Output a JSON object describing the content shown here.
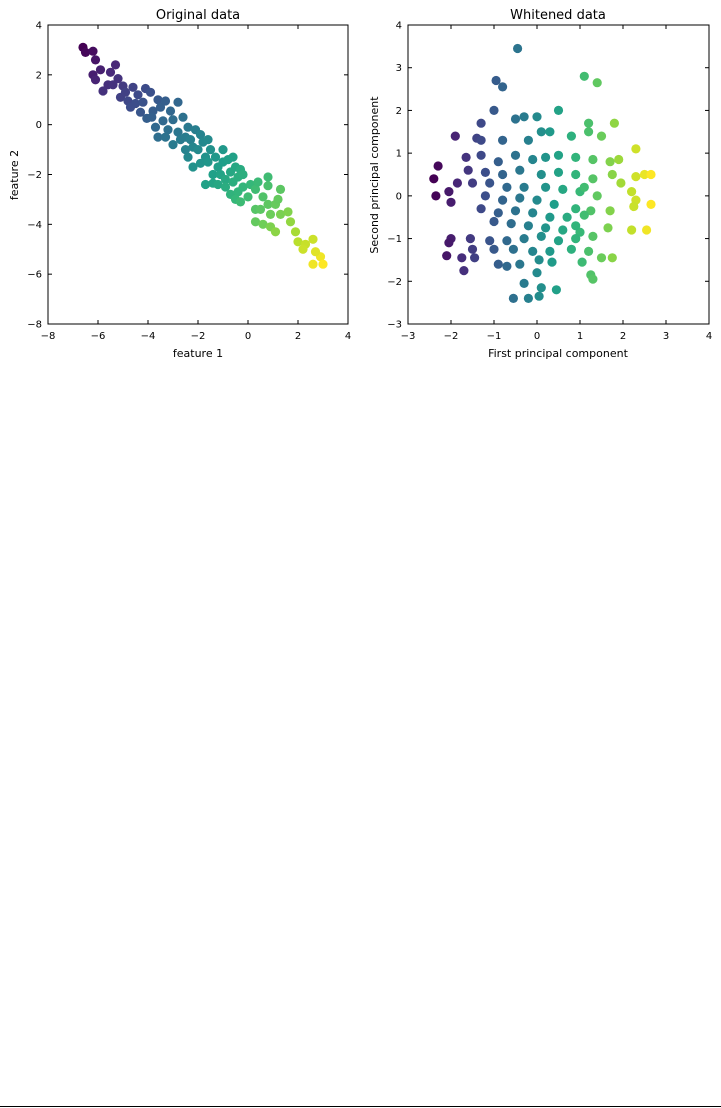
{
  "chart_data": [
    {
      "type": "scatter",
      "title": "Original data",
      "xlabel": "feature 1",
      "ylabel": "feature 2",
      "xlim": [
        -8,
        4
      ],
      "ylim": [
        -8,
        4
      ],
      "xticks": [
        -8,
        -6,
        -4,
        -2,
        0,
        2,
        4
      ],
      "yticks": [
        -8,
        -6,
        -4,
        -2,
        0,
        2,
        4
      ],
      "grid": false,
      "legend": null,
      "colormap": "viridis",
      "color_by": "first principal component",
      "points": [
        [
          -6.6,
          3.1
        ],
        [
          -6.5,
          2.9
        ],
        [
          -6.2,
          2.95
        ],
        [
          -6.1,
          2.6
        ],
        [
          -6.2,
          2.0
        ],
        [
          -6.1,
          1.8
        ],
        [
          -5.9,
          2.2
        ],
        [
          -5.5,
          2.1
        ],
        [
          -5.3,
          2.4
        ],
        [
          -5.6,
          1.6
        ],
        [
          -5.8,
          1.35
        ],
        [
          -5.2,
          1.85
        ],
        [
          -5.0,
          1.55
        ],
        [
          -5.1,
          1.1
        ],
        [
          -4.9,
          1.3
        ],
        [
          -4.6,
          1.5
        ],
        [
          -4.8,
          0.95
        ],
        [
          -4.5,
          0.85
        ],
        [
          -4.4,
          1.2
        ],
        [
          -4.1,
          1.45
        ],
        [
          -4.2,
          0.9
        ],
        [
          -3.9,
          1.3
        ],
        [
          -3.6,
          1.0
        ],
        [
          -3.8,
          0.55
        ],
        [
          -4.05,
          0.25
        ],
        [
          -3.85,
          0.3
        ],
        [
          -3.5,
          0.7
        ],
        [
          -3.3,
          0.95
        ],
        [
          -3.1,
          0.55
        ],
        [
          -3.4,
          0.15
        ],
        [
          -3.7,
          -0.1
        ],
        [
          -3.6,
          -0.5
        ],
        [
          -3.2,
          -0.2
        ],
        [
          -3.0,
          0.2
        ],
        [
          -2.8,
          0.9
        ],
        [
          -2.8,
          -0.3
        ],
        [
          -2.6,
          0.3
        ],
        [
          -2.4,
          -0.1
        ],
        [
          -3.0,
          -0.8
        ],
        [
          -2.7,
          -0.6
        ],
        [
          -2.5,
          -0.5
        ],
        [
          -2.3,
          -0.6
        ],
        [
          -2.1,
          -0.2
        ],
        [
          -1.9,
          -0.4
        ],
        [
          -2.2,
          -0.9
        ],
        [
          -2.0,
          -1.0
        ],
        [
          -1.8,
          -0.7
        ],
        [
          -1.6,
          -0.6
        ],
        [
          -1.5,
          -1.0
        ],
        [
          -1.7,
          -1.3
        ],
        [
          -2.4,
          -1.3
        ],
        [
          -2.2,
          -1.7
        ],
        [
          -1.9,
          -1.55
        ],
        [
          -1.6,
          -1.5
        ],
        [
          -1.3,
          -1.3
        ],
        [
          -1.2,
          -1.7
        ],
        [
          -1.0,
          -1.5
        ],
        [
          -0.8,
          -1.4
        ],
        [
          -0.6,
          -1.3
        ],
        [
          -1.4,
          -2.0
        ],
        [
          -1.1,
          -2.0
        ],
        [
          -0.9,
          -2.2
        ],
        [
          -0.7,
          -1.9
        ],
        [
          -0.5,
          -1.7
        ],
        [
          -0.3,
          -1.8
        ],
        [
          -1.7,
          -2.4
        ],
        [
          -1.4,
          -2.35
        ],
        [
          -1.2,
          -2.4
        ],
        [
          -0.9,
          -2.5
        ],
        [
          -0.6,
          -2.3
        ],
        [
          -0.4,
          -2.1
        ],
        [
          -0.2,
          -2.0
        ],
        [
          -0.7,
          -2.8
        ],
        [
          -0.4,
          -2.7
        ],
        [
          -0.2,
          -2.5
        ],
        [
          0.1,
          -2.4
        ],
        [
          -0.5,
          -3.0
        ],
        [
          -0.3,
          -3.1
        ],
        [
          0.0,
          -2.9
        ],
        [
          0.3,
          -2.6
        ],
        [
          0.4,
          -2.3
        ],
        [
          0.8,
          -2.45
        ],
        [
          0.6,
          -2.9
        ],
        [
          1.3,
          -2.6
        ],
        [
          0.8,
          -2.1
        ],
        [
          0.3,
          -3.4
        ],
        [
          0.5,
          -3.4
        ],
        [
          0.8,
          -3.2
        ],
        [
          1.1,
          -3.2
        ],
        [
          0.3,
          -3.9
        ],
        [
          1.2,
          -3.0
        ],
        [
          0.9,
          -3.6
        ],
        [
          1.3,
          -3.6
        ],
        [
          1.7,
          -3.9
        ],
        [
          0.6,
          -4.0
        ],
        [
          0.9,
          -4.1
        ],
        [
          1.6,
          -3.5
        ],
        [
          1.1,
          -4.3
        ],
        [
          1.9,
          -4.3
        ],
        [
          2.0,
          -4.7
        ],
        [
          2.3,
          -4.8
        ],
        [
          2.2,
          -5.0
        ],
        [
          2.6,
          -4.6
        ],
        [
          2.9,
          -5.3
        ],
        [
          2.7,
          -5.1
        ],
        [
          3.0,
          -5.6
        ],
        [
          2.6,
          -5.6
        ],
        [
          -5.4,
          1.6
        ],
        [
          -4.7,
          0.7
        ],
        [
          -4.3,
          0.5
        ],
        [
          -3.3,
          -0.5
        ],
        [
          -2.5,
          -1.0
        ],
        [
          -1.0,
          -1.0
        ]
      ]
    },
    {
      "type": "scatter",
      "title": "Whitened data",
      "xlabel": "First principal component",
      "ylabel": "Second principal component",
      "xlim": [
        -3,
        4
      ],
      "ylim": [
        -3,
        4
      ],
      "xticks": [
        -3,
        -2,
        -1,
        0,
        1,
        2,
        3,
        4
      ],
      "yticks": [
        -3,
        -2,
        -1,
        0,
        1,
        2,
        3,
        4
      ],
      "grid": false,
      "legend": null,
      "colormap": "viridis",
      "color_by": "first principal component",
      "points": [
        [
          -0.45,
          3.45
        ],
        [
          -0.8,
          2.55
        ],
        [
          -0.95,
          2.7
        ],
        [
          1.1,
          2.8
        ],
        [
          1.4,
          2.65
        ],
        [
          -1.0,
          2.0
        ],
        [
          -1.3,
          1.7
        ],
        [
          0.5,
          2.0
        ],
        [
          -0.5,
          1.8
        ],
        [
          -0.3,
          1.85
        ],
        [
          0.0,
          1.85
        ],
        [
          1.2,
          1.7
        ],
        [
          1.8,
          1.7
        ],
        [
          -1.9,
          1.4
        ],
        [
          -1.4,
          1.35
        ],
        [
          -0.8,
          1.3
        ],
        [
          -0.2,
          1.3
        ],
        [
          0.1,
          1.5
        ],
        [
          0.3,
          1.5
        ],
        [
          0.8,
          1.4
        ],
        [
          1.2,
          1.5
        ],
        [
          1.5,
          1.4
        ],
        [
          -1.65,
          0.9
        ],
        [
          -1.3,
          0.95
        ],
        [
          -0.9,
          0.8
        ],
        [
          -0.5,
          0.95
        ],
        [
          -0.1,
          0.85
        ],
        [
          0.2,
          0.9
        ],
        [
          0.5,
          0.95
        ],
        [
          0.9,
          0.9
        ],
        [
          1.3,
          0.85
        ],
        [
          1.7,
          0.8
        ],
        [
          2.3,
          1.1
        ],
        [
          1.9,
          0.85
        ],
        [
          -2.3,
          0.7
        ],
        [
          -1.6,
          0.6
        ],
        [
          -1.2,
          0.55
        ],
        [
          -0.8,
          0.5
        ],
        [
          -0.4,
          0.6
        ],
        [
          0.1,
          0.5
        ],
        [
          0.5,
          0.55
        ],
        [
          0.9,
          0.5
        ],
        [
          1.3,
          0.4
        ],
        [
          1.75,
          0.5
        ],
        [
          2.3,
          0.45
        ],
        [
          2.5,
          0.5
        ],
        [
          2.65,
          0.5
        ],
        [
          -2.4,
          0.4
        ],
        [
          -1.85,
          0.3
        ],
        [
          -1.5,
          0.3
        ],
        [
          -1.1,
          0.3
        ],
        [
          -0.7,
          0.2
        ],
        [
          -0.3,
          0.2
        ],
        [
          0.2,
          0.2
        ],
        [
          0.6,
          0.15
        ],
        [
          1.0,
          0.1
        ],
        [
          1.4,
          0.0
        ],
        [
          1.95,
          0.3
        ],
        [
          2.2,
          0.1
        ],
        [
          -2.35,
          0.0
        ],
        [
          -2.05,
          0.1
        ],
        [
          -1.2,
          0.0
        ],
        [
          -0.8,
          -0.1
        ],
        [
          -0.4,
          -0.05
        ],
        [
          0.0,
          -0.1
        ],
        [
          0.4,
          -0.2
        ],
        [
          0.9,
          -0.3
        ],
        [
          1.25,
          -0.35
        ],
        [
          1.7,
          -0.35
        ],
        [
          2.3,
          -0.1
        ],
        [
          2.65,
          -0.2
        ],
        [
          -2.0,
          -0.15
        ],
        [
          -1.3,
          -0.3
        ],
        [
          -0.9,
          -0.4
        ],
        [
          -0.5,
          -0.35
        ],
        [
          -0.1,
          -0.4
        ],
        [
          0.3,
          -0.5
        ],
        [
          0.7,
          -0.5
        ],
        [
          1.1,
          -0.45
        ],
        [
          2.25,
          -0.25
        ],
        [
          -1.0,
          -0.6
        ],
        [
          -0.6,
          -0.65
        ],
        [
          -0.2,
          -0.7
        ],
        [
          0.2,
          -0.75
        ],
        [
          0.6,
          -0.8
        ],
        [
          1.0,
          -0.85
        ],
        [
          1.65,
          -0.75
        ],
        [
          2.2,
          -0.8
        ],
        [
          2.55,
          -0.8
        ],
        [
          -2.0,
          -1.0
        ],
        [
          -1.55,
          -1.0
        ],
        [
          -1.1,
          -1.05
        ],
        [
          -0.7,
          -1.05
        ],
        [
          -0.3,
          -1.0
        ],
        [
          0.1,
          -0.95
        ],
        [
          0.5,
          -1.05
        ],
        [
          0.9,
          -1.0
        ],
        [
          1.3,
          -0.95
        ],
        [
          -2.05,
          -1.1
        ],
        [
          -1.5,
          -1.25
        ],
        [
          -1.0,
          -1.25
        ],
        [
          -0.55,
          -1.25
        ],
        [
          -0.1,
          -1.3
        ],
        [
          0.3,
          -1.3
        ],
        [
          0.8,
          -1.25
        ],
        [
          1.2,
          -1.3
        ],
        [
          -1.75,
          -1.45
        ],
        [
          -1.45,
          -1.45
        ],
        [
          -0.9,
          -1.6
        ],
        [
          -0.4,
          -1.6
        ],
        [
          0.05,
          -1.5
        ],
        [
          0.35,
          -1.55
        ],
        [
          1.05,
          -1.55
        ],
        [
          1.5,
          -1.45
        ],
        [
          1.75,
          -1.45
        ],
        [
          -1.7,
          -1.75
        ],
        [
          -0.7,
          -1.65
        ],
        [
          0.0,
          -1.8
        ],
        [
          1.25,
          -1.85
        ],
        [
          1.3,
          -1.95
        ],
        [
          -0.3,
          -2.05
        ],
        [
          0.1,
          -2.15
        ],
        [
          0.45,
          -2.2
        ],
        [
          -0.55,
          -2.4
        ],
        [
          -0.2,
          -2.4
        ],
        [
          0.05,
          -2.35
        ],
        [
          -2.1,
          -1.4
        ],
        [
          0.9,
          -0.7
        ],
        [
          1.1,
          0.2
        ],
        [
          -1.3,
          1.3
        ]
      ]
    }
  ]
}
